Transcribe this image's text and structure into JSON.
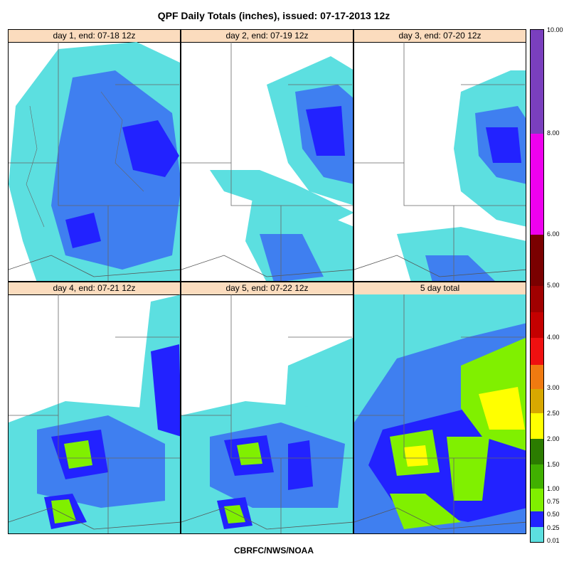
{
  "title": "QPF Daily Totals (inches),  issued: 07-17-2013 12z",
  "footer": "CBRFC/NWS/NOAA",
  "panels": [
    {
      "label": "day 1, end: 07-18 12z"
    },
    {
      "label": "day 2, end: 07-19 12z"
    },
    {
      "label": "day 3, end: 07-20 12z"
    },
    {
      "label": "day 4, end: 07-21 12z"
    },
    {
      "label": "day 5, end: 07-22 12z"
    },
    {
      "label": "5 day total"
    }
  ],
  "legend": {
    "labels": [
      "10.00",
      "8.00",
      "6.00",
      "5.00",
      "4.00",
      "3.00",
      "2.50",
      "2.00",
      "1.50",
      "1.00",
      "0.75",
      "0.50",
      "0.25",
      "0.01"
    ],
    "colors": [
      "#7a3fbe",
      "#ee00ee",
      "#7a0000",
      "#a00000",
      "#c40000",
      "#ef1010",
      "#f07a10",
      "#d8a800",
      "#ffff00",
      "#2b7c00",
      "#40b000",
      "#80f000",
      "#2222ff",
      "#5cdfe0"
    ]
  }
}
